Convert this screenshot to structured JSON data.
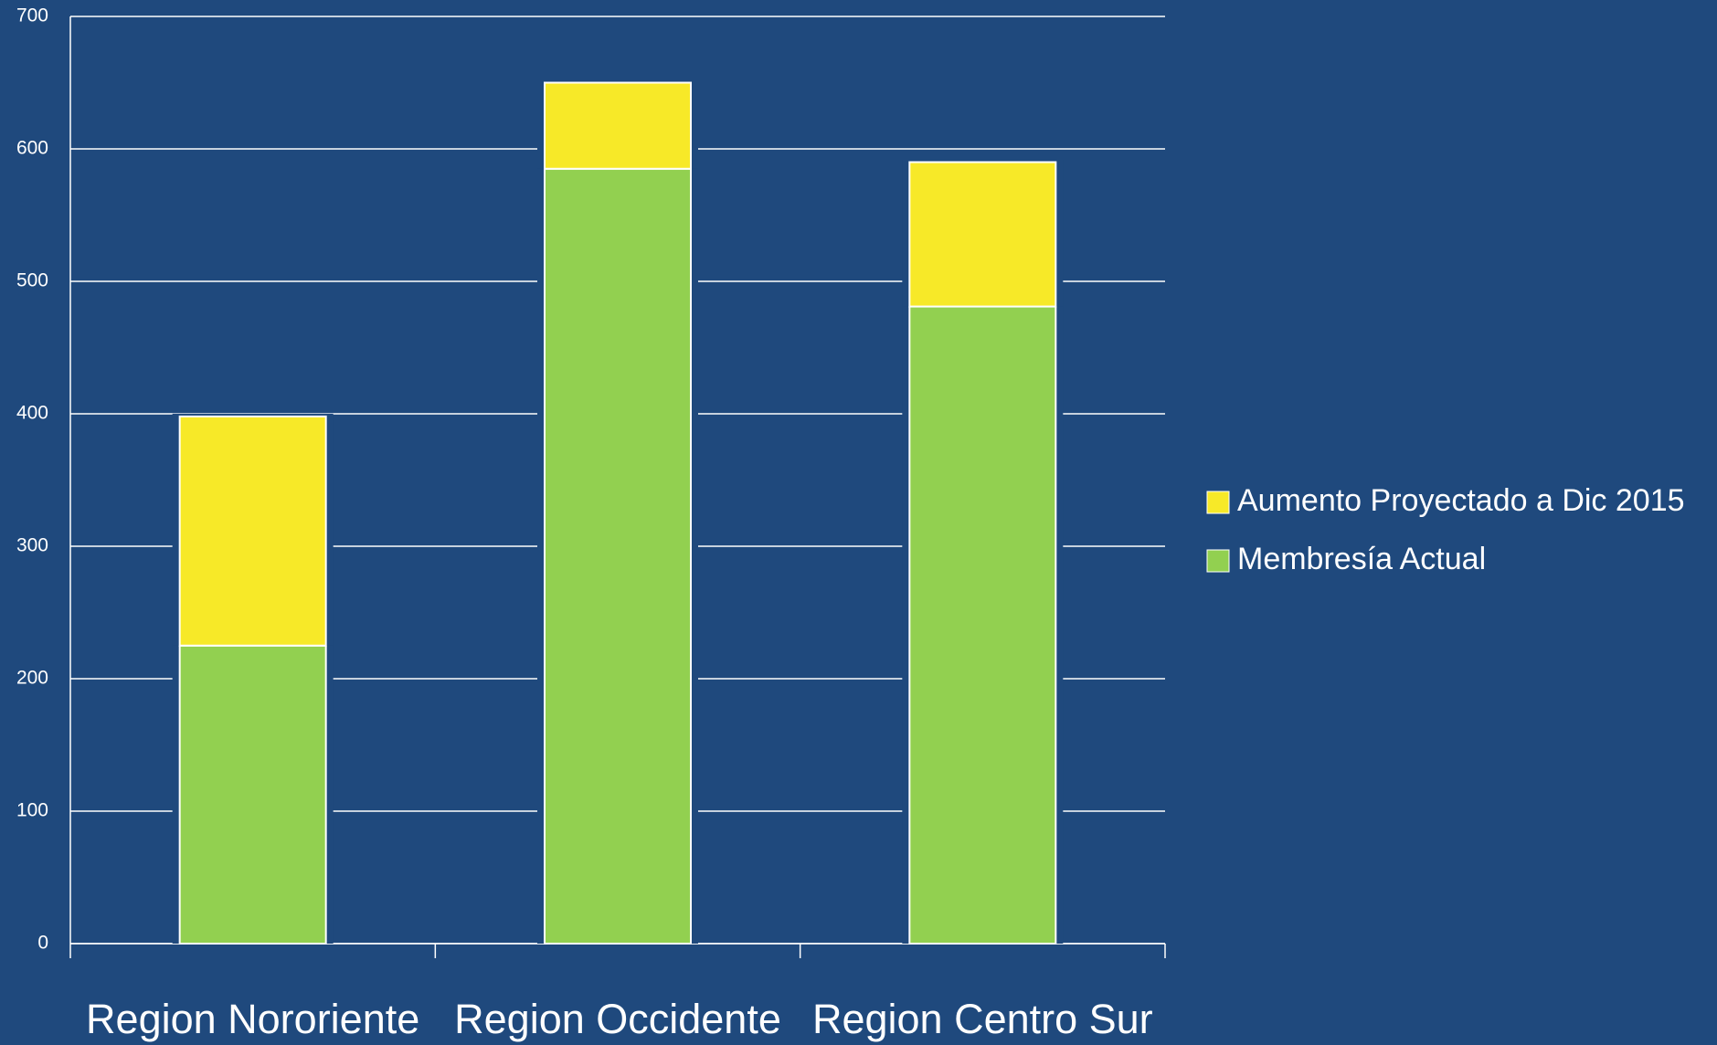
{
  "chart_data": {
    "type": "stacked_bar",
    "categories": [
      "Region Nororiente",
      "Region Occidente",
      "Region Centro Sur"
    ],
    "series": [
      {
        "name": "Membresía Actual",
        "color": "#92d050",
        "values": [
          225,
          585,
          481
        ]
      },
      {
        "name": "Aumento Proyectado a Dic 2015",
        "color": "#f7e928",
        "values": [
          173,
          65,
          109
        ]
      }
    ],
    "ylim": [
      0,
      700
    ],
    "yticks": [
      0,
      100,
      200,
      300,
      400,
      500,
      600,
      700
    ],
    "grid": true,
    "legend": "right"
  }
}
